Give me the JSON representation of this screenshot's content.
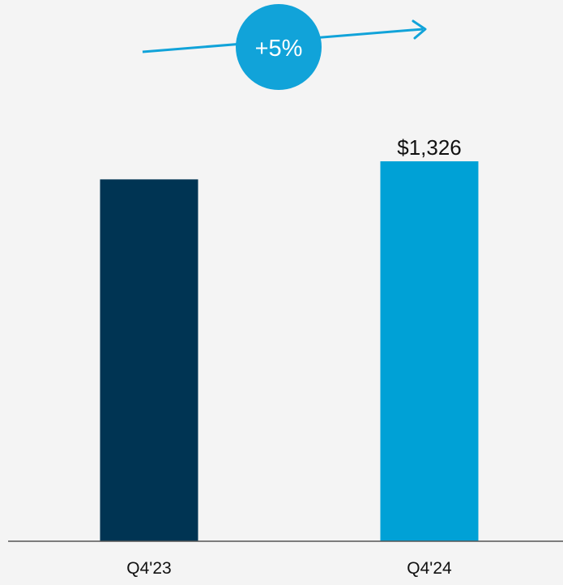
{
  "chart_data": {
    "type": "bar",
    "categories": [
      "Q4'23",
      "Q4'24"
    ],
    "values": [
      1263,
      1326
    ],
    "data_labels": [
      "",
      "$1,326"
    ],
    "colors": [
      "#003453",
      "#00a1d6"
    ],
    "ylim": [
      0,
      1380
    ],
    "grid": false,
    "legend": "none",
    "annotation": {
      "text": "+5%",
      "color": "#11a3d9",
      "text_color": "#ffffff"
    },
    "baseline_color": "#555555"
  }
}
